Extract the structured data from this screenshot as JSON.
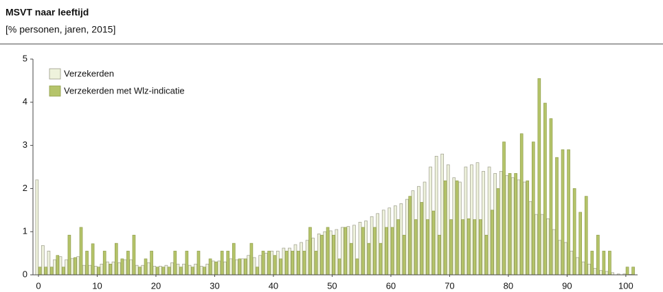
{
  "chart_data": {
    "type": "bar",
    "title": "MSVT naar leeftijd",
    "subtitle": "[% personen, jaren, 2015]",
    "x": [
      0,
      1,
      2,
      3,
      4,
      5,
      6,
      7,
      8,
      9,
      10,
      11,
      12,
      13,
      14,
      15,
      16,
      17,
      18,
      19,
      20,
      21,
      22,
      23,
      24,
      25,
      26,
      27,
      28,
      29,
      30,
      31,
      32,
      33,
      34,
      35,
      36,
      37,
      38,
      39,
      40,
      41,
      42,
      43,
      44,
      45,
      46,
      47,
      48,
      49,
      50,
      51,
      52,
      53,
      54,
      55,
      56,
      57,
      58,
      59,
      60,
      61,
      62,
      63,
      64,
      65,
      66,
      67,
      68,
      69,
      70,
      71,
      72,
      73,
      74,
      75,
      76,
      77,
      78,
      79,
      80,
      81,
      82,
      83,
      84,
      85,
      86,
      87,
      88,
      89,
      90,
      91,
      92,
      93,
      94,
      95,
      96,
      97,
      98,
      99,
      100,
      101
    ],
    "series": [
      {
        "name": "Verzekerden",
        "color": "#eef2dc",
        "stroke": "#9a9a88",
        "values": [
          2.2,
          0.68,
          0.55,
          0.35,
          0.42,
          0.35,
          0.38,
          0.42,
          0.22,
          0.22,
          0.2,
          0.25,
          0.3,
          0.3,
          0.28,
          0.35,
          0.35,
          0.22,
          0.22,
          0.28,
          0.2,
          0.2,
          0.22,
          0.28,
          0.25,
          0.25,
          0.22,
          0.25,
          0.2,
          0.25,
          0.32,
          0.32,
          0.3,
          0.37,
          0.35,
          0.37,
          0.45,
          0.4,
          0.45,
          0.5,
          0.55,
          0.55,
          0.62,
          0.62,
          0.7,
          0.75,
          0.8,
          0.85,
          0.95,
          1.0,
          1.02,
          1.05,
          1.1,
          1.12,
          1.15,
          1.22,
          1.25,
          1.35,
          1.42,
          1.5,
          1.55,
          1.6,
          1.65,
          1.75,
          1.95,
          2.05,
          2.15,
          2.5,
          2.75,
          2.8,
          2.55,
          2.25,
          2.15,
          2.5,
          2.55,
          2.6,
          2.4,
          2.5,
          2.35,
          2.4,
          2.3,
          2.25,
          2.2,
          2.15,
          1.7,
          1.4,
          1.4,
          1.3,
          1.05,
          0.8,
          0.75,
          0.55,
          0.4,
          0.3,
          0.25,
          0.15,
          0.1,
          0.08,
          0.05,
          0.02,
          0.02,
          0.01
        ]
      },
      {
        "name": "Verzekerden met Wlz-indicatie",
        "color": "#b5c46a",
        "stroke": "#8e9c48",
        "values": [
          0.18,
          0.18,
          0.18,
          0.45,
          0.18,
          0.92,
          0.4,
          1.1,
          0.55,
          0.72,
          0.18,
          0.55,
          0.25,
          0.73,
          0.37,
          0.55,
          0.92,
          0.18,
          0.37,
          0.55,
          0.18,
          0.18,
          0.18,
          0.55,
          0.18,
          0.55,
          0.18,
          0.55,
          0.18,
          0.37,
          0.3,
          0.55,
          0.55,
          0.73,
          0.37,
          0.37,
          0.73,
          0.18,
          0.55,
          0.55,
          0.45,
          0.37,
          0.55,
          0.55,
          0.55,
          0.55,
          1.1,
          0.55,
          0.92,
          1.1,
          0.92,
          0.37,
          1.1,
          0.73,
          0.37,
          1.1,
          0.73,
          1.1,
          0.73,
          1.1,
          1.1,
          1.28,
          0.92,
          1.82,
          1.28,
          1.68,
          1.28,
          1.48,
          0.92,
          2.18,
          1.28,
          2.18,
          1.28,
          1.3,
          1.28,
          1.28,
          0.92,
          1.5,
          2.0,
          3.08,
          2.35,
          2.35,
          3.27,
          2.18,
          3.08,
          4.55,
          3.98,
          3.62,
          2.72,
          2.9,
          2.9,
          2.0,
          1.45,
          1.82,
          0.55,
          0.92,
          0.55,
          0.55,
          0,
          0,
          0.18,
          0.18
        ]
      }
    ],
    "xlim": [
      -0.7,
      102
    ],
    "xticks": [
      0,
      10,
      20,
      30,
      40,
      50,
      60,
      70,
      80,
      90,
      100
    ],
    "ylim": [
      0,
      5
    ],
    "yticks": [
      0,
      1,
      2,
      3,
      4,
      5
    ],
    "grid": false,
    "legend": "top-left"
  }
}
